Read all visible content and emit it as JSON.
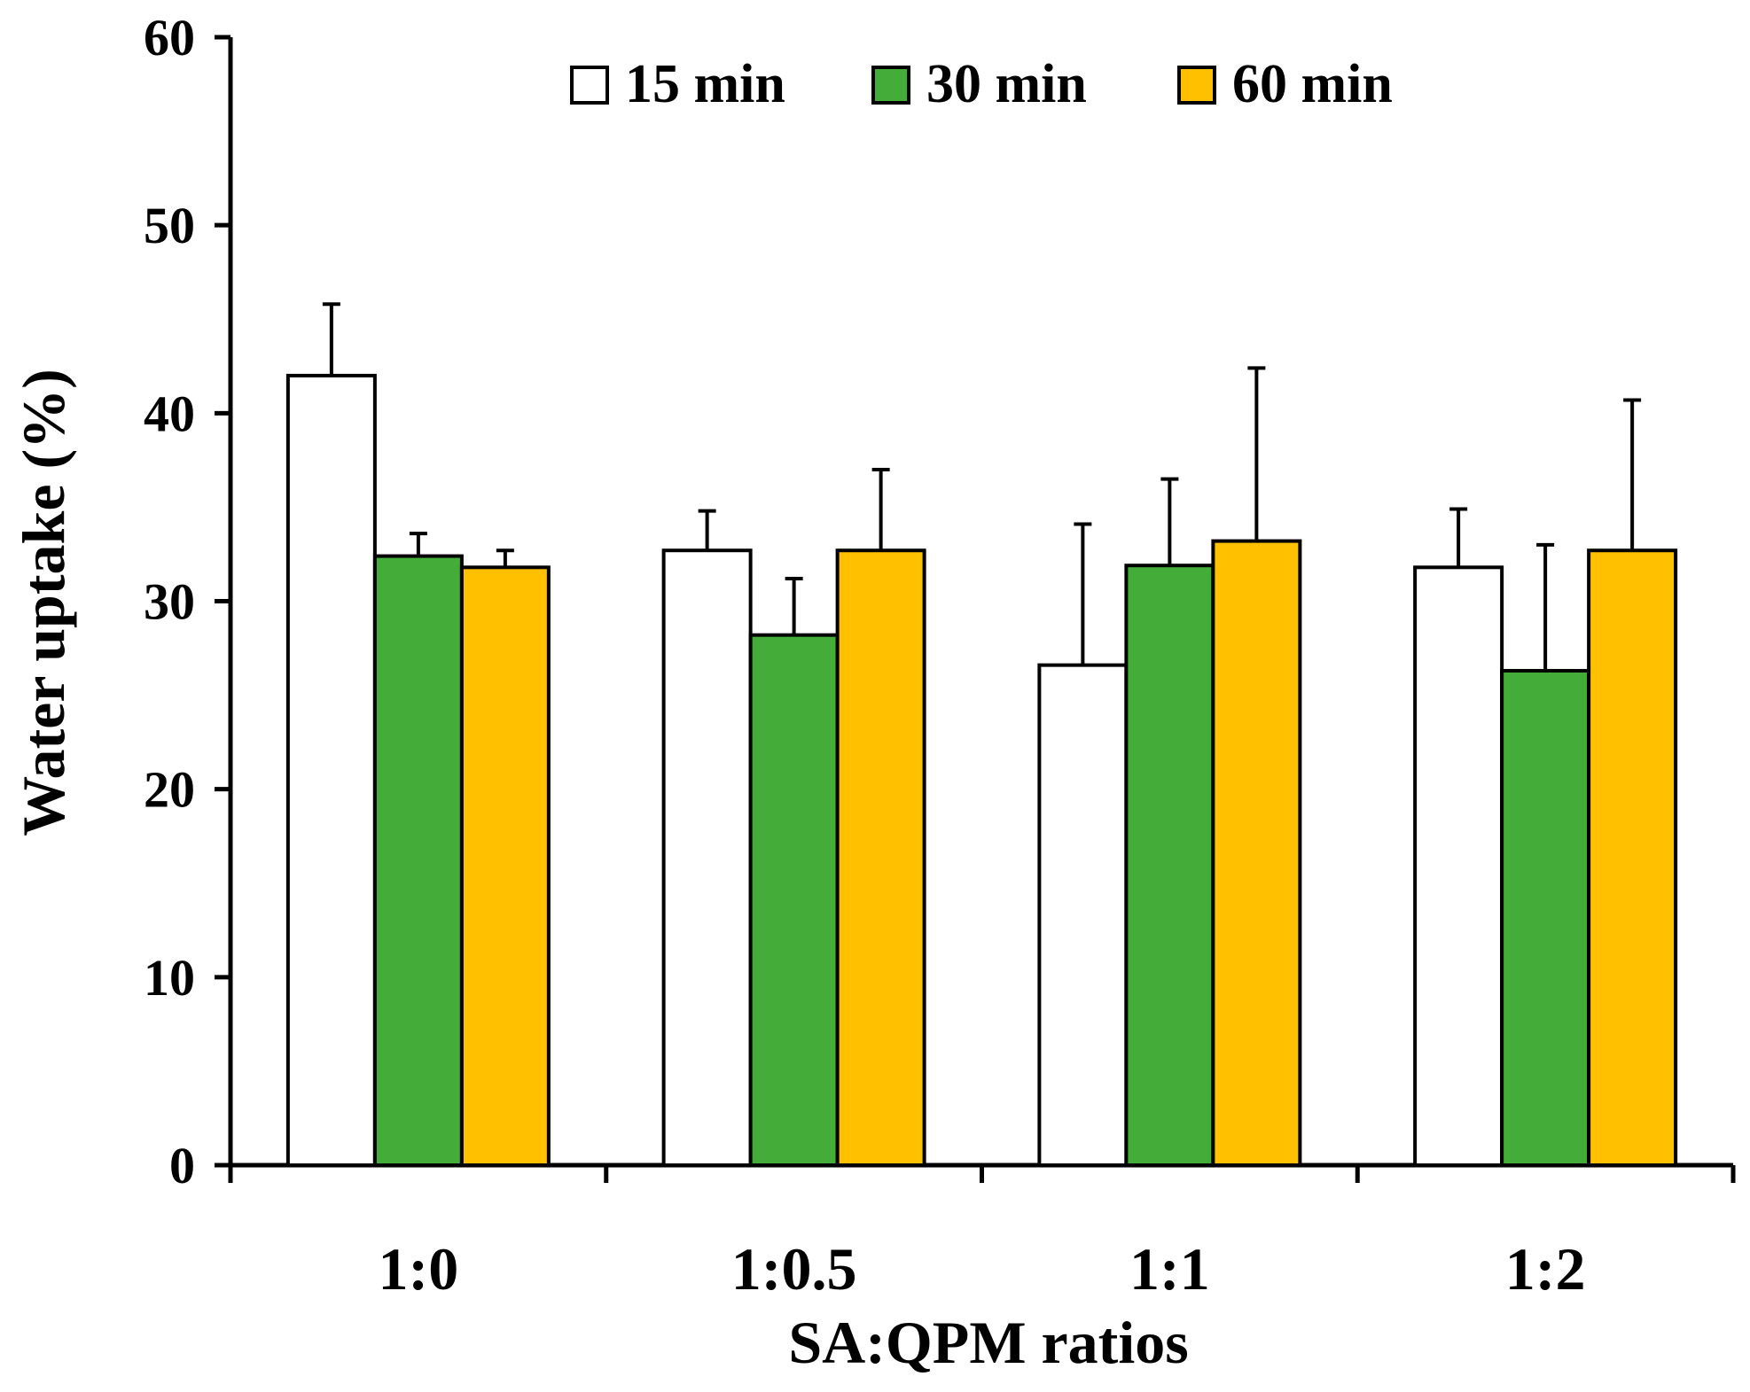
{
  "chart_data": {
    "type": "bar",
    "title": "",
    "xlabel": "SA:QPM ratios",
    "ylabel": "Water uptake (%)",
    "ylim": [
      0,
      60
    ],
    "yticks": [
      "0",
      "10",
      "20",
      "30",
      "40",
      "50",
      "60"
    ],
    "categories": [
      "1:0",
      "1:0.5",
      "1:1",
      "1:2"
    ],
    "series": [
      {
        "name": "15 min",
        "color": "#ffffff",
        "values": [
          42.0,
          32.7,
          26.6,
          31.8
        ],
        "errors": [
          3.8,
          2.1,
          7.5,
          3.1
        ]
      },
      {
        "name": "30 min",
        "color": "#44ad3a",
        "values": [
          32.4,
          28.2,
          31.9,
          26.3
        ],
        "errors": [
          1.2,
          3.0,
          4.6,
          6.7
        ]
      },
      {
        "name": "60 min",
        "color": "#ffc000",
        "values": [
          31.8,
          32.7,
          33.2,
          32.7
        ],
        "errors": [
          0.9,
          4.3,
          9.2,
          8.0
        ]
      }
    ],
    "legend_position": "top"
  }
}
